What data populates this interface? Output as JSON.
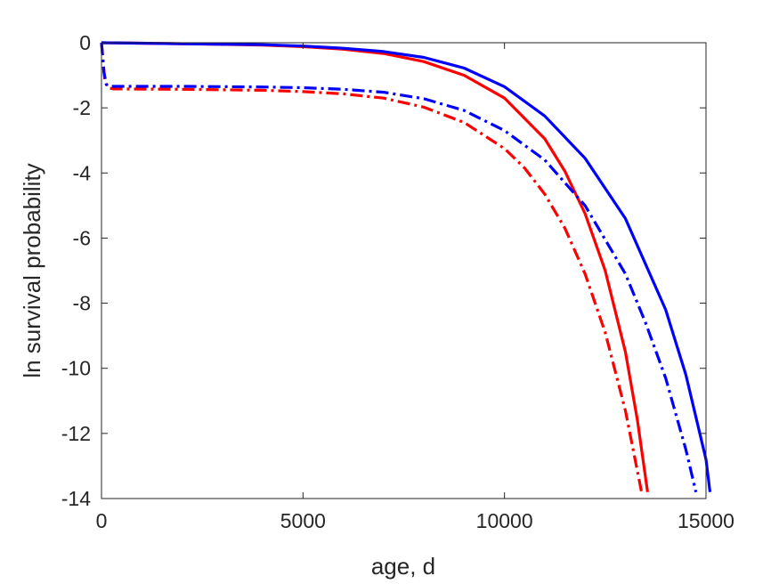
{
  "chart_data": {
    "type": "line",
    "title": "",
    "xlabel": "age, d",
    "ylabel": "ln survival probability",
    "xlim": [
      0,
      15000
    ],
    "ylim": [
      -14,
      0
    ],
    "xticks": [
      0,
      5000,
      10000,
      15000
    ],
    "yticks": [
      0,
      -2,
      -4,
      -6,
      -8,
      -10,
      -12,
      -14
    ],
    "grid": false,
    "legend": "none",
    "series": [
      {
        "color": "#ff0000",
        "linestyle": "solid",
        "x": [
          0,
          2000,
          4000,
          5000,
          6000,
          7000,
          8000,
          9000,
          10000,
          11000,
          11500,
          12000,
          12500,
          13000,
          13300,
          13550
        ],
        "y": [
          0,
          -0.03,
          -0.07,
          -0.12,
          -0.2,
          -0.33,
          -0.58,
          -1.0,
          -1.7,
          -2.95,
          -3.95,
          -5.25,
          -7.0,
          -9.5,
          -11.6,
          -13.8
        ]
      },
      {
        "color": "#ff0000",
        "linestyle": "dashdot",
        "x": [
          0,
          80,
          150,
          300,
          2000,
          4000,
          5000,
          6000,
          7000,
          8000,
          9000,
          10000,
          10500,
          11000,
          11500,
          12000,
          12500,
          13000,
          13400
        ],
        "y": [
          0,
          -1.1,
          -1.38,
          -1.42,
          -1.43,
          -1.46,
          -1.5,
          -1.57,
          -1.7,
          -1.98,
          -2.45,
          -3.25,
          -3.85,
          -4.65,
          -5.7,
          -7.1,
          -8.9,
          -11.3,
          -13.8
        ]
      },
      {
        "color": "#0000ff",
        "linestyle": "solid",
        "x": [
          0,
          2000,
          4000,
          5000,
          6000,
          7000,
          8000,
          9000,
          10000,
          11000,
          12000,
          13000,
          14000,
          14500,
          15000,
          15100
        ],
        "y": [
          0,
          -0.03,
          -0.06,
          -0.1,
          -0.17,
          -0.27,
          -0.45,
          -0.78,
          -1.35,
          -2.25,
          -3.55,
          -5.4,
          -8.2,
          -10.2,
          -12.8,
          -13.8
        ]
      },
      {
        "color": "#0000ff",
        "linestyle": "dashdot",
        "x": [
          0,
          60,
          120,
          200,
          2000,
          4000,
          5000,
          6000,
          7000,
          8000,
          9000,
          10000,
          11000,
          12000,
          13000,
          13500,
          14000,
          14500,
          14750
        ],
        "y": [
          0,
          -0.9,
          -1.28,
          -1.34,
          -1.34,
          -1.36,
          -1.38,
          -1.43,
          -1.52,
          -1.72,
          -2.08,
          -2.7,
          -3.6,
          -5.0,
          -7.1,
          -8.6,
          -10.3,
          -12.5,
          -13.8
        ]
      }
    ]
  }
}
